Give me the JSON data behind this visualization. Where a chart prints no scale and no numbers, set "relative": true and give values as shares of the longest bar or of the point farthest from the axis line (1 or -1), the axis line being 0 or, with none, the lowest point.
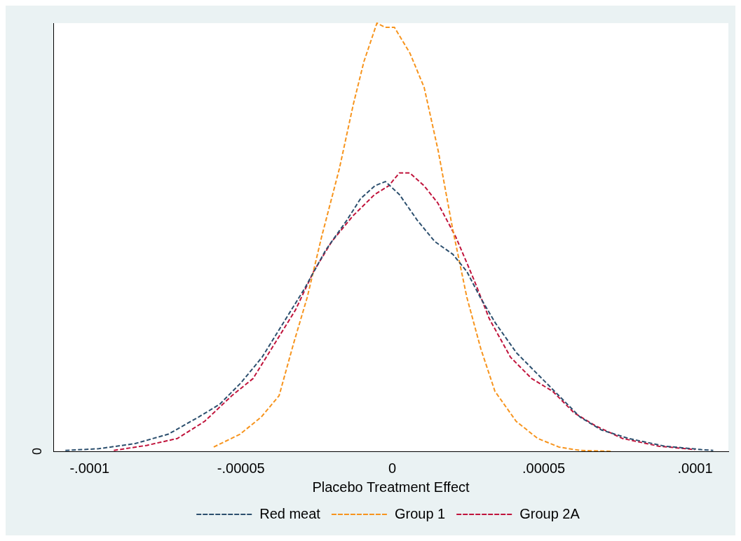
{
  "chart_data": {
    "type": "line",
    "relative": true,
    "xlabel": "Placebo Treatment Effect",
    "xlim": [
      -0.000112,
      0.000111
    ],
    "xticks": [
      {
        "value": -0.0001,
        "label": "-.0001"
      },
      {
        "value": -5e-05,
        "label": "-.00005"
      },
      {
        "value": 0,
        "label": "0"
      },
      {
        "value": 5e-05,
        "label": ".00005"
      },
      {
        "value": 0.0001,
        "label": ".0001"
      }
    ],
    "annotations": [
      "0"
    ],
    "legend": "bottom",
    "line_style": "dashed",
    "marker": "none",
    "grid": false,
    "series": [
      {
        "name": "Red meat",
        "color": "#2c4f6e",
        "x": [
          -0.000108,
          -9.7e-05,
          -8.5e-05,
          -7.4e-05,
          -6.4e-05,
          -5.7e-05,
          -5e-05,
          -4.3e-05,
          -3.6e-05,
          -2.9e-05,
          -2.2e-05,
          -1.5e-05,
          -1.05e-05,
          -5.8e-06,
          -2.3e-06,
          2.3e-06,
          8.2e-06,
          1.4e-05,
          2e-05,
          2.46e-05,
          2.9e-05,
          3.4e-05,
          4.1e-05,
          4.8e-05,
          5.5e-05,
          6.2e-05,
          6.9e-05,
          7.8e-05,
          9e-05,
          0.000102,
          0.000106
        ],
        "values": [
          0.002,
          0.006,
          0.018,
          0.04,
          0.08,
          0.11,
          0.16,
          0.22,
          0.3,
          0.38,
          0.47,
          0.54,
          0.59,
          0.62,
          0.63,
          0.6,
          0.54,
          0.49,
          0.46,
          0.42,
          0.36,
          0.3,
          0.23,
          0.18,
          0.13,
          0.08,
          0.05,
          0.03,
          0.012,
          0.004,
          0.002
        ]
      },
      {
        "name": "Group 1",
        "color": "#f7941d",
        "x": [
          -5.9e-05,
          -5.03e-05,
          -4.33e-05,
          -3.74e-05,
          -3.27e-05,
          -2.81e-05,
          -2.34e-05,
          -1.75e-05,
          -1.29e-05,
          -9.4e-06,
          -5.1e-06,
          -2.3e-06,
          7e-07,
          5.8e-06,
          1.05e-05,
          1.52e-05,
          1.99e-05,
          2.46e-05,
          2.92e-05,
          3.39e-05,
          4.09e-05,
          4.8e-05,
          5.5e-05,
          6.2e-05,
          7.25e-05
        ],
        "values": [
          0.01,
          0.04,
          0.08,
          0.13,
          0.25,
          0.36,
          0.5,
          0.66,
          0.81,
          0.91,
          1,
          0.99,
          0.99,
          0.93,
          0.85,
          0.7,
          0.52,
          0.36,
          0.24,
          0.14,
          0.07,
          0.03,
          0.01,
          0.002,
          0
        ]
      },
      {
        "name": "Group 2A",
        "color": "#c0143c",
        "x": [
          -9.2e-05,
          -8.1e-05,
          -7.1e-05,
          -6.2e-05,
          -5.3e-05,
          -4.6e-05,
          -3.9e-05,
          -3.2e-05,
          -2.6e-05,
          -2e-05,
          -1.3e-05,
          -5.8e-06,
          -1.2e-06,
          2.3e-06,
          5.8e-06,
          1.05e-05,
          1.5e-05,
          2.1e-05,
          2.7e-05,
          3.2e-05,
          3.9e-05,
          4.6e-05,
          5.3e-05,
          6e-05,
          6.7e-05,
          7.6e-05,
          8.8e-05,
          0.0001
        ],
        "values": [
          0.002,
          0.014,
          0.03,
          0.07,
          0.13,
          0.17,
          0.25,
          0.33,
          0.42,
          0.49,
          0.55,
          0.6,
          0.62,
          0.65,
          0.65,
          0.62,
          0.58,
          0.5,
          0.4,
          0.31,
          0.22,
          0.17,
          0.14,
          0.09,
          0.06,
          0.03,
          0.012,
          0.004
        ]
      }
    ]
  }
}
